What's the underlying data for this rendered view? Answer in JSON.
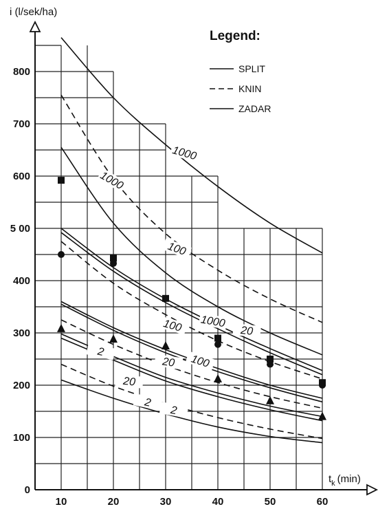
{
  "chart_data": {
    "type": "line",
    "title": "",
    "ylabel": "i (l/sek/ha)",
    "xlabel_main": "t",
    "xlabel_sub": "k",
    "xlabel_unit": "(min)",
    "xlim": [
      5,
      61.5
    ],
    "ylim": [
      0,
      860
    ],
    "x_ticks": [
      10,
      20,
      30,
      40,
      50,
      60
    ],
    "y_ticks": [
      0,
      100,
      200,
      300,
      400,
      500,
      600,
      700,
      800
    ],
    "y_tick_labels": [
      "0",
      "100",
      "200",
      "300",
      "400",
      "5 00",
      "600",
      "700",
      "800"
    ],
    "grid": true,
    "legend_placement": "top-right",
    "legend": {
      "title": "Legend:",
      "entries": [
        {
          "label": "SPLIT",
          "style": "solid"
        },
        {
          "label": "KNIN",
          "style": "dashed"
        },
        {
          "label": "ZADAR",
          "style": "solid"
        }
      ]
    },
    "series": [
      {
        "style": "solid",
        "x": [
          10,
          20,
          30,
          40,
          50,
          60
        ],
        "y": [
          865,
          750,
          660,
          580,
          510,
          453
        ]
      },
      {
        "style": "dashed",
        "x": [
          10,
          20,
          30,
          40,
          50,
          60
        ],
        "y": [
          755,
          595,
          490,
          420,
          365,
          320
        ]
      },
      {
        "style": "solid",
        "x": [
          10,
          20,
          30,
          40,
          50,
          60
        ],
        "y": [
          655,
          510,
          415,
          350,
          300,
          258
        ]
      },
      {
        "style": "solid",
        "x": [
          10,
          20,
          30,
          40,
          50,
          60
        ],
        "y": [
          500,
          425,
          365,
          315,
          270,
          228
        ]
      },
      {
        "style": "solid",
        "x": [
          10,
          20,
          30,
          40,
          50,
          60
        ],
        "y": [
          492,
          418,
          358,
          308,
          262,
          220
        ]
      },
      {
        "style": "dashed",
        "x": [
          10,
          20,
          30,
          40,
          50,
          60
        ],
        "y": [
          475,
          395,
          335,
          285,
          245,
          212
        ]
      },
      {
        "style": "solid",
        "x": [
          10,
          20,
          30,
          40,
          50,
          60
        ],
        "y": [
          360,
          310,
          268,
          232,
          200,
          175
        ]
      },
      {
        "style": "solid",
        "x": [
          10,
          20,
          30,
          40,
          50,
          60
        ],
        "y": [
          355,
          305,
          262,
          226,
          195,
          168
        ]
      },
      {
        "style": "dashed",
        "x": [
          10,
          20,
          30,
          40,
          50,
          60
        ],
        "y": [
          325,
          278,
          238,
          205,
          178,
          156
        ]
      },
      {
        "style": "solid",
        "x": [
          10,
          20,
          30,
          40,
          50,
          60
        ],
        "y": [
          298,
          255,
          215,
          185,
          160,
          140
        ]
      },
      {
        "style": "solid",
        "x": [
          10,
          20,
          30,
          40,
          50,
          60
        ],
        "y": [
          290,
          248,
          208,
          178,
          153,
          132
        ]
      },
      {
        "style": "dashed",
        "x": [
          10,
          20,
          30,
          40,
          50,
          60
        ],
        "y": [
          240,
          198,
          165,
          138,
          116,
          98
        ]
      },
      {
        "style": "solid",
        "x": [
          10,
          20,
          30,
          40,
          50,
          60
        ],
        "y": [
          210,
          175,
          145,
          120,
          102,
          90
        ]
      }
    ],
    "curve_labels": [
      {
        "text": "1000",
        "x": 33.5,
        "y": 640,
        "angle": 16
      },
      {
        "text": "1000",
        "x": 19.5,
        "y": 588,
        "angle": 30
      },
      {
        "text": "100",
        "x": 32.0,
        "y": 457,
        "angle": 20
      },
      {
        "text": "1000",
        "x": 39.0,
        "y": 318,
        "angle": 10
      },
      {
        "text": "20",
        "x": 45.5,
        "y": 300,
        "angle": 6
      },
      {
        "text": "100",
        "x": 31.2,
        "y": 310,
        "angle": 16
      },
      {
        "text": "2",
        "x": 17.5,
        "y": 260,
        "angle": 12
      },
      {
        "text": "20",
        "x": 30.5,
        "y": 240,
        "angle": 8
      },
      {
        "text": "100",
        "x": 36.5,
        "y": 242,
        "angle": 18
      },
      {
        "text": "20",
        "x": 23.0,
        "y": 203,
        "angle": 6
      },
      {
        "text": "2",
        "x": 26.5,
        "y": 163,
        "angle": 12
      },
      {
        "text": "2",
        "x": 31.5,
        "y": 148,
        "angle": 10
      }
    ],
    "markers": [
      {
        "shape": "square",
        "x": 10,
        "y": 592
      },
      {
        "shape": "square",
        "x": 20,
        "y": 443
      },
      {
        "shape": "square",
        "x": 30,
        "y": 366
      },
      {
        "shape": "square",
        "x": 40,
        "y": 290
      },
      {
        "shape": "square",
        "x": 50,
        "y": 250
      },
      {
        "shape": "square",
        "x": 60,
        "y": 205
      },
      {
        "shape": "circle",
        "x": 10,
        "y": 450
      },
      {
        "shape": "circle",
        "x": 20,
        "y": 433
      },
      {
        "shape": "circle",
        "x": 40,
        "y": 278
      },
      {
        "shape": "circle",
        "x": 50,
        "y": 240
      },
      {
        "shape": "circle",
        "x": 60,
        "y": 200
      },
      {
        "shape": "triangle",
        "x": 10,
        "y": 308
      },
      {
        "shape": "triangle",
        "x": 20,
        "y": 288
      },
      {
        "shape": "triangle",
        "x": 30,
        "y": 275
      },
      {
        "shape": "triangle",
        "x": 40,
        "y": 212
      },
      {
        "shape": "triangle",
        "x": 50,
        "y": 170
      },
      {
        "shape": "triangle",
        "x": 60,
        "y": 140
      }
    ]
  }
}
